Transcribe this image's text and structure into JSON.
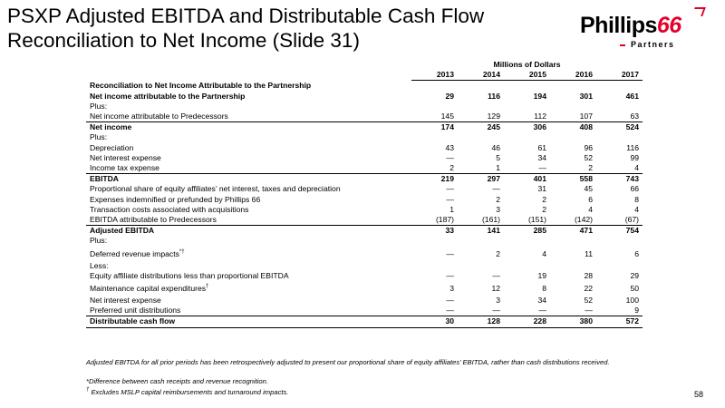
{
  "slide": {
    "title_line1": "PSXP Adjusted EBITDA and Distributable Cash Flow",
    "title_line2": "Reconciliation to Net Income (Slide 31)",
    "page_number": "58"
  },
  "logo": {
    "main": "Phillips",
    "six": "66",
    "sub": "Partners",
    "brand_color": "#e4002b"
  },
  "table": {
    "unit_label": "Millions of Dollars",
    "years": [
      "2013",
      "2014",
      "2015",
      "2016",
      "2017"
    ],
    "rows": [
      {
        "label": "Reconciliation to Net Income Attributable to the Partnership",
        "values": [
          "",
          "",
          "",
          "",
          ""
        ]
      },
      {
        "label": "Net income attributable to the Partnership",
        "values": [
          "29",
          "116",
          "194",
          "301",
          "461"
        ]
      },
      {
        "label": "Plus:",
        "values": [
          "",
          "",
          "",
          "",
          ""
        ]
      },
      {
        "label": "Net income attributable to Predecessors",
        "values": [
          "145",
          "129",
          "112",
          "107",
          "63"
        ]
      },
      {
        "label": "Net income",
        "values": [
          "174",
          "245",
          "306",
          "408",
          "524"
        ]
      },
      {
        "label": "Plus:",
        "values": [
          "",
          "",
          "",
          "",
          ""
        ]
      },
      {
        "label": "Depreciation",
        "values": [
          "43",
          "46",
          "61",
          "96",
          "116"
        ]
      },
      {
        "label": "Net interest expense",
        "values": [
          "—",
          "5",
          "34",
          "52",
          "99"
        ]
      },
      {
        "label": "Income tax expense",
        "values": [
          "2",
          "1",
          "—",
          "2",
          "4"
        ]
      },
      {
        "label": "EBITDA",
        "values": [
          "219",
          "297",
          "401",
          "558",
          "743"
        ]
      },
      {
        "label": "Proportional share of equity affiliates’ net interest, taxes and depreciation",
        "values": [
          "—",
          "—",
          "31",
          "45",
          "66"
        ]
      },
      {
        "label": "Expenses indemnified or prefunded by Phillips 66",
        "values": [
          "—",
          "2",
          "2",
          "6",
          "8"
        ]
      },
      {
        "label": "Transaction costs associated with acquisitions",
        "values": [
          "1",
          "3",
          "2",
          "4",
          "4"
        ]
      },
      {
        "label": "EBITDA attributable to Predecessors",
        "values": [
          "(187)",
          "(161)",
          "(151)",
          "(142)",
          "(67)"
        ]
      },
      {
        "label": "Adjusted EBITDA",
        "values": [
          "33",
          "141",
          "285",
          "471",
          "754"
        ]
      },
      {
        "label": "Plus:",
        "values": [
          "",
          "",
          "",
          "",
          ""
        ]
      },
      {
        "label": "Deferred revenue impacts",
        "sup": "*†",
        "values": [
          "—",
          "2",
          "4",
          "11",
          "6"
        ]
      },
      {
        "label": "Less:",
        "values": [
          "",
          "",
          "",
          "",
          ""
        ]
      },
      {
        "label": "Equity affiliate distributions less than proportional EBITDA",
        "values": [
          "—",
          "—",
          "19",
          "28",
          "29"
        ]
      },
      {
        "label": "Maintenance capital expenditures",
        "sup": "†",
        "values": [
          "3",
          "12",
          "8",
          "22",
          "50"
        ]
      },
      {
        "label": "Net interest expense",
        "values": [
          "—",
          "3",
          "34",
          "52",
          "100"
        ]
      },
      {
        "label": "Preferred unit distributions",
        "values": [
          "—",
          "—",
          "—",
          "—",
          "9"
        ]
      },
      {
        "label": "Distributable cash flow",
        "values": [
          "30",
          "128",
          "228",
          "380",
          "572"
        ]
      }
    ]
  },
  "footnotes": {
    "note1": "Adjusted EBITDA for all prior periods has been retrospectively adjusted to present our proportional share of equity affiliates’ EBITDA, rather than cash distributions received.",
    "note2": "*Difference between cash receipts and revenue recognition.",
    "note3_mark": "†",
    "note3": " Excludes MSLP capital reimbursements and turnaround impacts."
  }
}
